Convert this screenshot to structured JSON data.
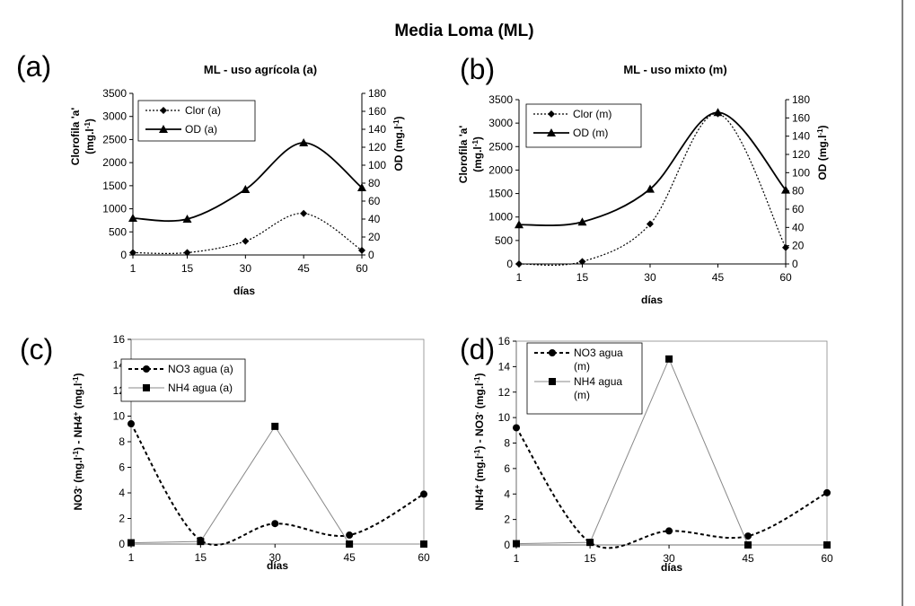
{
  "figure_title": "Media Loma (ML)",
  "chart_data": [
    {
      "panel_label": "(a)",
      "type": "line",
      "title": "ML - uso agrícola (a)",
      "xlabel": "días",
      "ylabel": "Clorofila 'a' (mg.l-1)",
      "ylabel_lines": [
        "Clorofila 'a'",
        "(mg.l-1)"
      ],
      "y2label": "OD (mg.l-1)",
      "x_ticks": [
        1,
        15,
        30,
        45,
        60
      ],
      "y_ticks": [
        0,
        500,
        1000,
        1500,
        2000,
        2500,
        3000,
        3500
      ],
      "y2_ticks": [
        0,
        20,
        40,
        60,
        80,
        100,
        120,
        140,
        160,
        180
      ],
      "ylim": [
        0,
        3500
      ],
      "y2lim": [
        0,
        180
      ],
      "series": [
        {
          "name": "Clor (a)",
          "axis": "left",
          "style": "dotted",
          "marker": "diamond",
          "x": [
            1,
            15,
            30,
            45,
            60
          ],
          "values": [
            50,
            50,
            300,
            900,
            100
          ]
        },
        {
          "name": "OD (a)",
          "axis": "right",
          "style": "solid",
          "marker": "triangle",
          "x": [
            1,
            15,
            30,
            45,
            60
          ],
          "values": [
            41,
            40,
            73,
            125,
            75
          ]
        }
      ],
      "legend": "top-left"
    },
    {
      "panel_label": "(b)",
      "type": "line",
      "title": "ML - uso mixto (m)",
      "xlabel": "días",
      "ylabel": "Clorofila 'a' (mg.l-1)",
      "ylabel_lines": [
        "Clorofila 'a'",
        "(mg.l-1)"
      ],
      "y2label": "OD (mg.l-1)",
      "x_ticks": [
        1,
        15,
        30,
        45,
        60
      ],
      "y_ticks": [
        0,
        500,
        1000,
        1500,
        2000,
        2500,
        3000,
        3500
      ],
      "y2_ticks": [
        0,
        20,
        40,
        60,
        80,
        100,
        120,
        140,
        160,
        180
      ],
      "ylim": [
        0,
        3500
      ],
      "y2lim": [
        0,
        180
      ],
      "series": [
        {
          "name": "Clor (m)",
          "axis": "left",
          "style": "dotted",
          "marker": "diamond",
          "x": [
            1,
            15,
            30,
            45,
            60
          ],
          "values": [
            0,
            50,
            850,
            3200,
            350
          ]
        },
        {
          "name": "OD (m)",
          "axis": "right",
          "style": "solid",
          "marker": "triangle",
          "x": [
            1,
            15,
            30,
            45,
            60
          ],
          "values": [
            43,
            46,
            82,
            166,
            81
          ]
        }
      ],
      "legend": "top-left"
    },
    {
      "panel_label": "(c)",
      "type": "line",
      "title": "",
      "xlabel": "días",
      "ylabel": "NO3- (mg.l-1) - NH4+ (mg.l-1)",
      "x_ticks": [
        1,
        15,
        30,
        45,
        60
      ],
      "y_ticks": [
        0,
        2,
        4,
        6,
        8,
        10,
        12,
        14,
        16
      ],
      "ylim": [
        0,
        16
      ],
      "series": [
        {
          "name": "NO3 agua (a)",
          "style": "dashed",
          "marker": "circle",
          "x": [
            1,
            15,
            30,
            45,
            60
          ],
          "values": [
            9.4,
            0.3,
            1.6,
            0.7,
            3.9
          ]
        },
        {
          "name": "NH4 agua (a)",
          "style": "solid-thin",
          "marker": "square",
          "x": [
            1,
            15,
            30,
            45,
            60
          ],
          "values": [
            0.1,
            0.2,
            9.2,
            0.0,
            0.0
          ]
        }
      ],
      "legend": "top-left"
    },
    {
      "panel_label": "(d)",
      "type": "line",
      "title": "",
      "xlabel": "días",
      "ylabel": "NH4+ (mg.l-1) - NO3- (mg.l-1)",
      "x_ticks": [
        1,
        15,
        30,
        45,
        60
      ],
      "y_ticks": [
        0,
        2,
        4,
        6,
        8,
        10,
        12,
        14,
        16
      ],
      "ylim": [
        0,
        16
      ],
      "series": [
        {
          "name": "NO3 agua (m)",
          "name_lines": [
            "NO3 agua",
            "(m)"
          ],
          "style": "dashed",
          "marker": "circle",
          "x": [
            1,
            15,
            30,
            45,
            60
          ],
          "values": [
            9.2,
            0.2,
            1.1,
            0.7,
            4.1
          ]
        },
        {
          "name": "NH4 agua (m)",
          "name_lines": [
            "NH4 agua",
            "(m)"
          ],
          "style": "solid-thin",
          "marker": "square",
          "x": [
            1,
            15,
            30,
            45,
            60
          ],
          "values": [
            0.1,
            0.2,
            14.6,
            0.0,
            0.0
          ]
        }
      ],
      "legend": "top-left"
    }
  ]
}
